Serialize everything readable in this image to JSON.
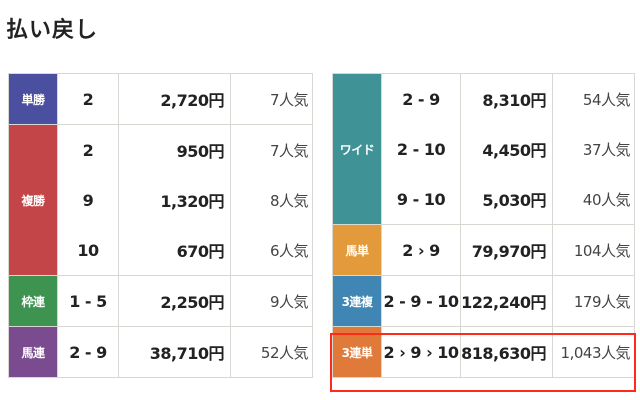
{
  "title": "払い戻し",
  "left": [
    {
      "label": "単勝",
      "color": "#4a4fa0",
      "rows": [
        {
          "combo": "2",
          "payout": "2,720円",
          "popularity": "7人気"
        }
      ]
    },
    {
      "label": "複勝",
      "color": "#c44548",
      "rows": [
        {
          "combo": "2",
          "payout": "950円",
          "popularity": "7人気"
        },
        {
          "combo": "9",
          "payout": "1,320円",
          "popularity": "8人気"
        },
        {
          "combo": "10",
          "payout": "670円",
          "popularity": "6人気"
        }
      ]
    },
    {
      "label": "枠連",
      "color": "#3e9350",
      "rows": [
        {
          "combo": "1 - 5",
          "payout": "2,250円",
          "popularity": "9人気"
        }
      ]
    },
    {
      "label": "馬連",
      "color": "#7b4b8f",
      "rows": [
        {
          "combo": "2 - 9",
          "payout": "38,710円",
          "popularity": "52人気"
        }
      ]
    }
  ],
  "right": [
    {
      "label": "ワイド",
      "color": "#3f9397",
      "rows": [
        {
          "combo": "2 - 9",
          "payout": "8,310円",
          "popularity": "54人気"
        },
        {
          "combo": "2 - 10",
          "payout": "4,450円",
          "popularity": "37人気"
        },
        {
          "combo": "9 - 10",
          "payout": "5,030円",
          "popularity": "40人気"
        }
      ]
    },
    {
      "label": "馬単",
      "color": "#e39a3a",
      "rows": [
        {
          "combo": "2 › 9",
          "payout": "79,970円",
          "popularity": "104人気"
        }
      ]
    },
    {
      "label": "3連複",
      "color": "#3f86b4",
      "rows": [
        {
          "combo": "2 - 9 - 10",
          "payout": "122,240円",
          "popularity": "179人気"
        }
      ]
    },
    {
      "label": "3連単",
      "color": "#e07a3a",
      "highlighted": true,
      "rows": [
        {
          "combo": "2 › 9 › 10",
          "payout": "818,630円",
          "popularity": "1,043人気"
        }
      ]
    }
  ],
  "highlight_color": "#ff2a1a"
}
